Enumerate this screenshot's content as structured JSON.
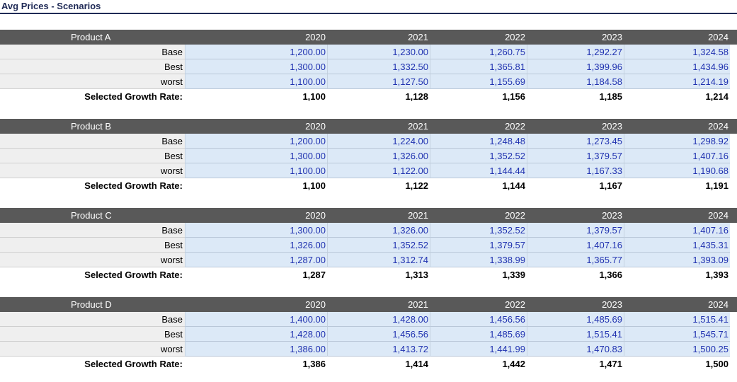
{
  "title": "Avg Prices - Scenarios",
  "years": [
    "2020",
    "2021",
    "2022",
    "2023",
    "2024"
  ],
  "selected_label": "Selected Growth Rate:",
  "products": [
    {
      "name": "Product A",
      "rows": [
        {
          "label": "Base",
          "values": [
            "1,200.00",
            "1,230.00",
            "1,260.75",
            "1,292.27",
            "1,324.58"
          ]
        },
        {
          "label": "Best",
          "values": [
            "1,300.00",
            "1,332.50",
            "1,365.81",
            "1,399.96",
            "1,434.96"
          ]
        },
        {
          "label": "worst",
          "values": [
            "1,100.00",
            "1,127.50",
            "1,155.69",
            "1,184.58",
            "1,214.19"
          ]
        }
      ],
      "selected": [
        "1,100",
        "1,128",
        "1,156",
        "1,185",
        "1,214"
      ]
    },
    {
      "name": "Product B",
      "rows": [
        {
          "label": "Base",
          "values": [
            "1,200.00",
            "1,224.00",
            "1,248.48",
            "1,273.45",
            "1,298.92"
          ]
        },
        {
          "label": "Best",
          "values": [
            "1,300.00",
            "1,326.00",
            "1,352.52",
            "1,379.57",
            "1,407.16"
          ]
        },
        {
          "label": "worst",
          "values": [
            "1,100.00",
            "1,122.00",
            "1,144.44",
            "1,167.33",
            "1,190.68"
          ]
        }
      ],
      "selected": [
        "1,100",
        "1,122",
        "1,144",
        "1,167",
        "1,191"
      ]
    },
    {
      "name": "Product C",
      "rows": [
        {
          "label": "Base",
          "values": [
            "1,300.00",
            "1,326.00",
            "1,352.52",
            "1,379.57",
            "1,407.16"
          ]
        },
        {
          "label": "Best",
          "values": [
            "1,326.00",
            "1,352.52",
            "1,379.57",
            "1,407.16",
            "1,435.31"
          ]
        },
        {
          "label": "worst",
          "values": [
            "1,287.00",
            "1,312.74",
            "1,338.99",
            "1,365.77",
            "1,393.09"
          ]
        }
      ],
      "selected": [
        "1,287",
        "1,313",
        "1,339",
        "1,366",
        "1,393"
      ]
    },
    {
      "name": "Product D",
      "rows": [
        {
          "label": "Base",
          "values": [
            "1,400.00",
            "1,428.00",
            "1,456.56",
            "1,485.69",
            "1,515.41"
          ]
        },
        {
          "label": "Best",
          "values": [
            "1,428.00",
            "1,456.56",
            "1,485.69",
            "1,515.41",
            "1,545.71"
          ]
        },
        {
          "label": "worst",
          "values": [
            "1,386.00",
            "1,413.72",
            "1,441.99",
            "1,470.83",
            "1,500.25"
          ]
        }
      ],
      "selected": [
        "1,386",
        "1,414",
        "1,442",
        "1,471",
        "1,500"
      ]
    }
  ]
}
